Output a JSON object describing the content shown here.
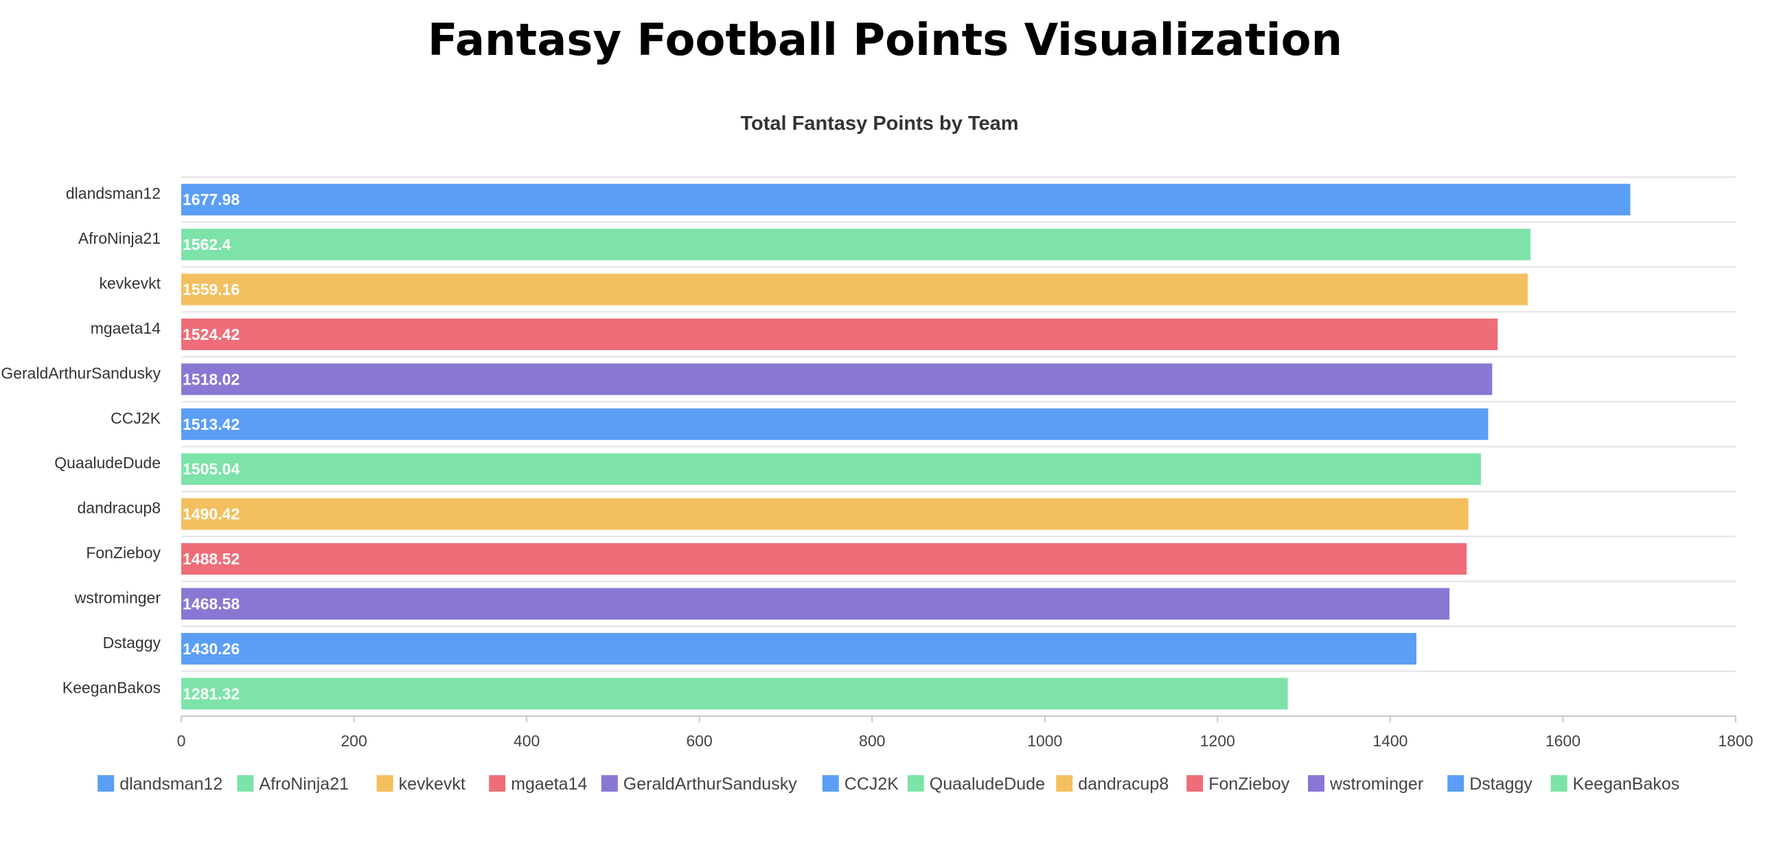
{
  "page": {
    "title": "Fantasy Football Points Visualization"
  },
  "chart_data": {
    "type": "bar",
    "orientation": "horizontal",
    "title": "Total Fantasy Points by Team",
    "xlabel": "",
    "ylabel": "",
    "categories": [
      "dlandsman12",
      "AfroNinja21",
      "kevkevkt",
      "mgaeta14",
      "GeraldArthurSandusky",
      "CCJ2K",
      "QuaaludeDude",
      "dandracup8",
      "FonZieboy",
      "wstrominger",
      "Dstaggy",
      "KeeganBakos"
    ],
    "values": [
      1677.98,
      1562.4,
      1559.16,
      1524.42,
      1518.02,
      1513.42,
      1505.04,
      1490.42,
      1488.52,
      1468.58,
      1430.26,
      1281.32
    ],
    "data_labels": [
      "1677.98",
      "1562.4",
      "1559.16",
      "1524.42",
      "1518.02",
      "1513.42",
      "1505.04",
      "1490.42",
      "1488.52",
      "1468.58",
      "1430.26",
      "1281.32"
    ],
    "colors": [
      "#5b9ef6",
      "#7de3a8",
      "#f3bf5f",
      "#ee6d79",
      "#8a77d3",
      "#5b9ef6",
      "#7de3a8",
      "#f3bf5f",
      "#ee6d79",
      "#8a77d3",
      "#5b9ef6",
      "#7de3a8"
    ],
    "xlim": [
      0,
      1800
    ],
    "x_ticks": [
      "0",
      "200",
      "400",
      "600",
      "800",
      "1000",
      "1200",
      "1400",
      "1600",
      "1800"
    ],
    "x_tick_values": [
      0,
      200,
      400,
      600,
      800,
      1000,
      1200,
      1400,
      1600,
      1800
    ],
    "grid": true,
    "legend": {
      "placement": "bottom",
      "entries": [
        "dlandsman12",
        "AfroNinja21",
        "kevkevkt",
        "mgaeta14",
        "GeraldArthurSandusky",
        "CCJ2K",
        "QuaaludeDude",
        "dandracup8",
        "FonZieboy",
        "wstrominger",
        "Dstaggy",
        "KeeganBakos"
      ]
    }
  }
}
